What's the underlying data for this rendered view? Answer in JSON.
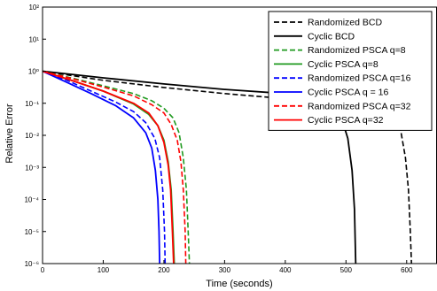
{
  "chart_data": {
    "type": "line",
    "title": "",
    "xlabel": "Time (seconds)",
    "ylabel": "Relative Error",
    "xlim": [
      0,
      650
    ],
    "ylim_log10": [
      -6,
      2
    ],
    "yscale": "log",
    "grid": false,
    "legend_position": "top-right",
    "x_ticks": [
      {
        "value": 0,
        "label": "0"
      },
      {
        "value": 100,
        "label": "100"
      },
      {
        "value": 200,
        "label": "200"
      },
      {
        "value": 300,
        "label": "300"
      },
      {
        "value": 400,
        "label": "400"
      },
      {
        "value": 500,
        "label": "500"
      },
      {
        "value": 600,
        "label": "600"
      }
    ],
    "y_ticks": [
      {
        "exp": 2,
        "label": "10²"
      },
      {
        "exp": 1,
        "label": "10¹"
      },
      {
        "exp": 0,
        "label": "10⁰"
      },
      {
        "exp": -1,
        "label": "10⁻¹"
      },
      {
        "exp": -2,
        "label": "10⁻²"
      },
      {
        "exp": -3,
        "label": "10⁻³"
      },
      {
        "exp": -4,
        "label": "10⁻⁴"
      },
      {
        "exp": -5,
        "label": "10⁻⁵"
      },
      {
        "exp": -6,
        "label": "10⁻⁶"
      }
    ],
    "series": [
      {
        "name": "Randomized BCD",
        "color": "#000000",
        "dashed": true,
        "points": [
          [
            0,
            1.0
          ],
          [
            100,
            0.52
          ],
          [
            200,
            0.31
          ],
          [
            300,
            0.2
          ],
          [
            400,
            0.14
          ],
          [
            480,
            0.11
          ],
          [
            540,
            0.09
          ],
          [
            575,
            0.05
          ],
          [
            590,
            0.015
          ],
          [
            598,
            0.002
          ],
          [
            603,
            0.0002
          ],
          [
            606,
            1e-05
          ],
          [
            608,
            1e-06
          ]
        ]
      },
      {
        "name": "Cyclic BCD",
        "color": "#000000",
        "dashed": false,
        "points": [
          [
            0,
            1.0
          ],
          [
            100,
            0.62
          ],
          [
            200,
            0.4
          ],
          [
            300,
            0.27
          ],
          [
            400,
            0.2
          ],
          [
            440,
            0.17
          ],
          [
            470,
            0.12
          ],
          [
            490,
            0.05
          ],
          [
            503,
            0.008
          ],
          [
            510,
            0.0008
          ],
          [
            514,
            5e-05
          ],
          [
            516,
            1e-06
          ]
        ]
      },
      {
        "name": "Randomized PSCA q=8",
        "color": "#1f9a1f",
        "dashed": true,
        "points": [
          [
            0,
            1.0
          ],
          [
            50,
            0.6
          ],
          [
            100,
            0.35
          ],
          [
            150,
            0.2
          ],
          [
            180,
            0.12
          ],
          [
            200,
            0.07
          ],
          [
            215,
            0.035
          ],
          [
            225,
            0.012
          ],
          [
            232,
            0.002
          ],
          [
            237,
            0.0002
          ],
          [
            240,
            1e-05
          ],
          [
            242,
            1e-06
          ]
        ]
      },
      {
        "name": "Cyclic PSCA q=8",
        "color": "#1f9a1f",
        "dashed": false,
        "points": [
          [
            0,
            1.0
          ],
          [
            50,
            0.5
          ],
          [
            100,
            0.24
          ],
          [
            150,
            0.095
          ],
          [
            175,
            0.045
          ],
          [
            190,
            0.02
          ],
          [
            200,
            0.007
          ],
          [
            207,
            0.0015
          ],
          [
            212,
            0.0002
          ],
          [
            215,
            1e-05
          ],
          [
            217,
            1e-06
          ]
        ]
      },
      {
        "name": "Randomized PSCA q=16",
        "color": "#0000ff",
        "dashed": true,
        "points": [
          [
            0,
            1.0
          ],
          [
            40,
            0.52
          ],
          [
            80,
            0.24
          ],
          [
            120,
            0.11
          ],
          [
            150,
            0.055
          ],
          [
            170,
            0.025
          ],
          [
            185,
            0.008
          ],
          [
            193,
            0.002
          ],
          [
            198,
            0.0002
          ],
          [
            201,
            1e-05
          ],
          [
            202,
            1e-06
          ]
        ]
      },
      {
        "name": "Cyclic PSCA q = 16",
        "color": "#0000ff",
        "dashed": false,
        "points": [
          [
            0,
            1.0
          ],
          [
            40,
            0.45
          ],
          [
            80,
            0.2
          ],
          [
            120,
            0.085
          ],
          [
            150,
            0.035
          ],
          [
            170,
            0.012
          ],
          [
            180,
            0.004
          ],
          [
            186,
            0.0008
          ],
          [
            190,
            0.0001
          ],
          [
            192,
            1e-05
          ],
          [
            193,
            1e-06
          ]
        ]
      },
      {
        "name": "Randomized PSCA q=32",
        "color": "#ff0000",
        "dashed": true,
        "points": [
          [
            0,
            1.0
          ],
          [
            50,
            0.58
          ],
          [
            100,
            0.32
          ],
          [
            150,
            0.17
          ],
          [
            180,
            0.09
          ],
          [
            200,
            0.05
          ],
          [
            212,
            0.022
          ],
          [
            222,
            0.007
          ],
          [
            228,
            0.0015
          ],
          [
            232,
            0.0002
          ],
          [
            235,
            1e-05
          ],
          [
            236,
            1e-06
          ]
        ]
      },
      {
        "name": "Cyclic PSCA q=32",
        "color": "#ff0000",
        "dashed": false,
        "points": [
          [
            0,
            1.0
          ],
          [
            50,
            0.5
          ],
          [
            100,
            0.24
          ],
          [
            150,
            0.1
          ],
          [
            175,
            0.05
          ],
          [
            190,
            0.02
          ],
          [
            200,
            0.006
          ],
          [
            207,
            0.0012
          ],
          [
            211,
            0.0002
          ],
          [
            214,
            1e-05
          ],
          [
            216,
            1e-06
          ]
        ]
      }
    ]
  }
}
